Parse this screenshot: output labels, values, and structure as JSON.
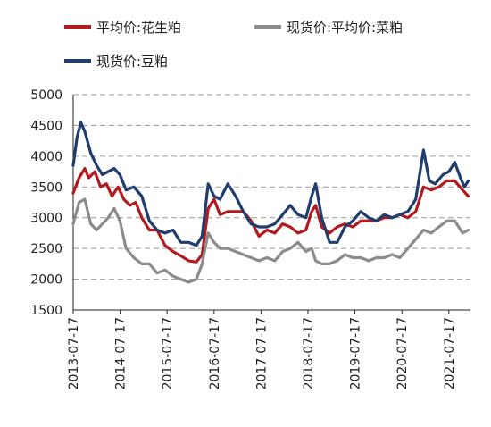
{
  "chart_data": {
    "type": "line",
    "title": "",
    "xlabel": "",
    "ylabel": "",
    "ylim": [
      1500,
      5000
    ],
    "yticks": [
      1500,
      2000,
      2500,
      3000,
      3500,
      4000,
      4500,
      5000
    ],
    "xticks": [
      "2013-07-17",
      "2014-07-17",
      "2015-07-17",
      "2016-07-17",
      "2017-07-17",
      "2018-07-17",
      "2019-07-17",
      "2020-07-17",
      "2021-07-17"
    ],
    "xlim": [
      "2013-07-17",
      "2022-01-01"
    ],
    "grid": "horizontal dashed",
    "legend_position": "top",
    "series": [
      {
        "name": "平均价:花生粕",
        "color": "#b11a1f",
        "points": [
          [
            "2013-07-17",
            3400
          ],
          [
            "2013-09-01",
            3650
          ],
          [
            "2013-10-15",
            3800
          ],
          [
            "2013-11-15",
            3650
          ],
          [
            "2014-01-01",
            3750
          ],
          [
            "2014-02-15",
            3500
          ],
          [
            "2014-04-01",
            3550
          ],
          [
            "2014-05-15",
            3350
          ],
          [
            "2014-07-01",
            3500
          ],
          [
            "2014-08-15",
            3300
          ],
          [
            "2014-10-01",
            3200
          ],
          [
            "2014-11-15",
            3250
          ],
          [
            "2015-01-01",
            3000
          ],
          [
            "2015-03-01",
            2800
          ],
          [
            "2015-05-01",
            2800
          ],
          [
            "2015-07-01",
            2550
          ],
          [
            "2015-09-01",
            2450
          ],
          [
            "2015-11-01",
            2380
          ],
          [
            "2016-01-01",
            2300
          ],
          [
            "2016-03-01",
            2280
          ],
          [
            "2016-04-15",
            2400
          ],
          [
            "2016-06-01",
            3150
          ],
          [
            "2016-07-17",
            3300
          ],
          [
            "2016-09-01",
            3050
          ],
          [
            "2016-11-01",
            3100
          ],
          [
            "2017-01-01",
            3100
          ],
          [
            "2017-03-01",
            3100
          ],
          [
            "2017-05-01",
            2950
          ],
          [
            "2017-07-01",
            2700
          ],
          [
            "2017-09-01",
            2800
          ],
          [
            "2017-11-01",
            2750
          ],
          [
            "2018-01-01",
            2900
          ],
          [
            "2018-03-01",
            2850
          ],
          [
            "2018-05-01",
            2750
          ],
          [
            "2018-07-01",
            2800
          ],
          [
            "2018-08-15",
            3100
          ],
          [
            "2018-09-15",
            3200
          ],
          [
            "2018-11-01",
            2850
          ],
          [
            "2019-01-01",
            2750
          ],
          [
            "2019-03-01",
            2850
          ],
          [
            "2019-05-01",
            2900
          ],
          [
            "2019-07-01",
            2850
          ],
          [
            "2019-09-01",
            2950
          ],
          [
            "2019-11-01",
            2950
          ],
          [
            "2020-01-01",
            2950
          ],
          [
            "2020-03-01",
            3000
          ],
          [
            "2020-05-01",
            3000
          ],
          [
            "2020-07-01",
            3050
          ],
          [
            "2020-09-01",
            3000
          ],
          [
            "2020-11-01",
            3100
          ],
          [
            "2021-01-01",
            3500
          ],
          [
            "2021-03-01",
            3450
          ],
          [
            "2021-05-01",
            3500
          ],
          [
            "2021-07-01",
            3600
          ],
          [
            "2021-09-01",
            3600
          ],
          [
            "2021-11-01",
            3450
          ],
          [
            "2021-12-15",
            3350
          ]
        ]
      },
      {
        "name": "现货价:平均价:菜粕",
        "color": "#8c8c8c",
        "points": [
          [
            "2013-07-17",
            2900
          ],
          [
            "2013-09-01",
            3250
          ],
          [
            "2013-10-15",
            3300
          ],
          [
            "2013-12-01",
            2900
          ],
          [
            "2014-01-15",
            2800
          ],
          [
            "2014-03-01",
            2900
          ],
          [
            "2014-04-15",
            3000
          ],
          [
            "2014-06-01",
            3150
          ],
          [
            "2014-07-15",
            2950
          ],
          [
            "2014-09-01",
            2500
          ],
          [
            "2014-11-01",
            2350
          ],
          [
            "2015-01-01",
            2250
          ],
          [
            "2015-03-01",
            2250
          ],
          [
            "2015-05-01",
            2100
          ],
          [
            "2015-07-01",
            2150
          ],
          [
            "2015-09-01",
            2050
          ],
          [
            "2015-11-01",
            2000
          ],
          [
            "2016-01-01",
            1950
          ],
          [
            "2016-03-01",
            2000
          ],
          [
            "2016-04-15",
            2250
          ],
          [
            "2016-06-01",
            2750
          ],
          [
            "2016-07-17",
            2600
          ],
          [
            "2016-09-01",
            2500
          ],
          [
            "2016-11-01",
            2500
          ],
          [
            "2017-01-01",
            2450
          ],
          [
            "2017-03-01",
            2400
          ],
          [
            "2017-05-01",
            2350
          ],
          [
            "2017-07-01",
            2300
          ],
          [
            "2017-09-01",
            2350
          ],
          [
            "2017-11-01",
            2300
          ],
          [
            "2018-01-01",
            2450
          ],
          [
            "2018-03-01",
            2500
          ],
          [
            "2018-05-01",
            2600
          ],
          [
            "2018-07-01",
            2450
          ],
          [
            "2018-08-15",
            2500
          ],
          [
            "2018-09-15",
            2300
          ],
          [
            "2018-11-01",
            2250
          ],
          [
            "2019-01-01",
            2250
          ],
          [
            "2019-03-01",
            2300
          ],
          [
            "2019-05-01",
            2400
          ],
          [
            "2019-07-01",
            2350
          ],
          [
            "2019-09-01",
            2350
          ],
          [
            "2019-11-01",
            2300
          ],
          [
            "2020-01-01",
            2350
          ],
          [
            "2020-03-01",
            2350
          ],
          [
            "2020-05-01",
            2400
          ],
          [
            "2020-07-01",
            2350
          ],
          [
            "2020-09-01",
            2500
          ],
          [
            "2020-11-01",
            2650
          ],
          [
            "2021-01-01",
            2800
          ],
          [
            "2021-03-01",
            2750
          ],
          [
            "2021-05-01",
            2850
          ],
          [
            "2021-07-01",
            2950
          ],
          [
            "2021-09-01",
            2950
          ],
          [
            "2021-11-01",
            2750
          ],
          [
            "2021-12-15",
            2800
          ]
        ]
      },
      {
        "name": "现货价:豆粕",
        "color": "#1f3e6e",
        "points": [
          [
            "2013-07-17",
            3850
          ],
          [
            "2013-08-15",
            4300
          ],
          [
            "2013-09-15",
            4550
          ],
          [
            "2013-10-15",
            4400
          ],
          [
            "2013-12-01",
            4050
          ],
          [
            "2014-01-15",
            3850
          ],
          [
            "2014-03-01",
            3700
          ],
          [
            "2014-04-15",
            3750
          ],
          [
            "2014-06-01",
            3800
          ],
          [
            "2014-07-15",
            3700
          ],
          [
            "2014-09-01",
            3450
          ],
          [
            "2014-11-01",
            3500
          ],
          [
            "2015-01-01",
            3350
          ],
          [
            "2015-03-01",
            2950
          ],
          [
            "2015-05-01",
            2800
          ],
          [
            "2015-07-01",
            2750
          ],
          [
            "2015-09-01",
            2800
          ],
          [
            "2015-11-01",
            2600
          ],
          [
            "2016-01-01",
            2600
          ],
          [
            "2016-03-01",
            2550
          ],
          [
            "2016-04-15",
            2700
          ],
          [
            "2016-06-01",
            3550
          ],
          [
            "2016-07-17",
            3350
          ],
          [
            "2016-09-01",
            3300
          ],
          [
            "2016-11-01",
            3550
          ],
          [
            "2017-01-01",
            3350
          ],
          [
            "2017-03-01",
            3100
          ],
          [
            "2017-05-01",
            2900
          ],
          [
            "2017-07-01",
            2850
          ],
          [
            "2017-09-01",
            2850
          ],
          [
            "2017-11-01",
            2900
          ],
          [
            "2018-01-01",
            3050
          ],
          [
            "2018-03-01",
            3200
          ],
          [
            "2018-05-01",
            3050
          ],
          [
            "2018-07-01",
            3000
          ],
          [
            "2018-08-15",
            3350
          ],
          [
            "2018-09-15",
            3550
          ],
          [
            "2018-11-01",
            3000
          ],
          [
            "2019-01-01",
            2600
          ],
          [
            "2019-03-01",
            2600
          ],
          [
            "2019-05-01",
            2850
          ],
          [
            "2019-07-01",
            2950
          ],
          [
            "2019-09-01",
            3100
          ],
          [
            "2019-11-01",
            3000
          ],
          [
            "2020-01-01",
            2950
          ],
          [
            "2020-03-01",
            3050
          ],
          [
            "2020-05-01",
            3000
          ],
          [
            "2020-07-01",
            3050
          ],
          [
            "2020-09-01",
            3100
          ],
          [
            "2020-11-01",
            3300
          ],
          [
            "2021-01-01",
            4100
          ],
          [
            "2021-02-15",
            3600
          ],
          [
            "2021-04-01",
            3550
          ],
          [
            "2021-06-01",
            3700
          ],
          [
            "2021-07-17",
            3750
          ],
          [
            "2021-09-01",
            3900
          ],
          [
            "2021-10-15",
            3650
          ],
          [
            "2021-11-15",
            3500
          ],
          [
            "2021-12-15",
            3600
          ]
        ]
      }
    ]
  }
}
